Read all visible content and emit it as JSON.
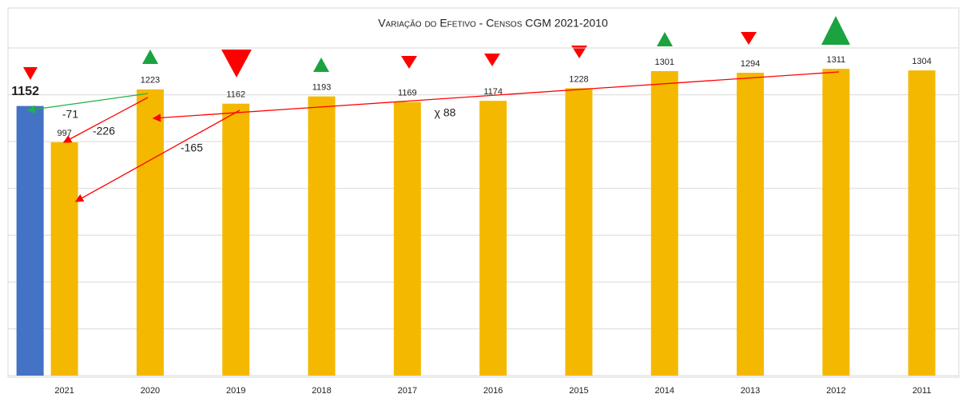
{
  "chart_data": {
    "type": "bar",
    "title": "Variação do Efetivo - Censos CGM 2021-2010",
    "categories": [
      "2021",
      "2020",
      "2019",
      "2018",
      "2017",
      "2016",
      "2015",
      "2014",
      "2013",
      "2012",
      "2011"
    ],
    "series": [
      {
        "color": "#4472c4",
        "values": [
          1152,
          null,
          null,
          null,
          null,
          null,
          null,
          null,
          null,
          null,
          null
        ]
      },
      {
        "color": "#f5b800",
        "values": [
          997,
          1223,
          1162,
          1193,
          1169,
          1174,
          1228,
          1301,
          1294,
          1311,
          1304
        ]
      }
    ],
    "annotations": [
      "-71",
      "-226",
      "-165",
      "χ 88"
    ],
    "ylim": [
      0,
      1400
    ],
    "yticks": [
      0,
      200,
      400,
      600,
      800,
      1000,
      1200,
      1400
    ],
    "grid": true
  }
}
